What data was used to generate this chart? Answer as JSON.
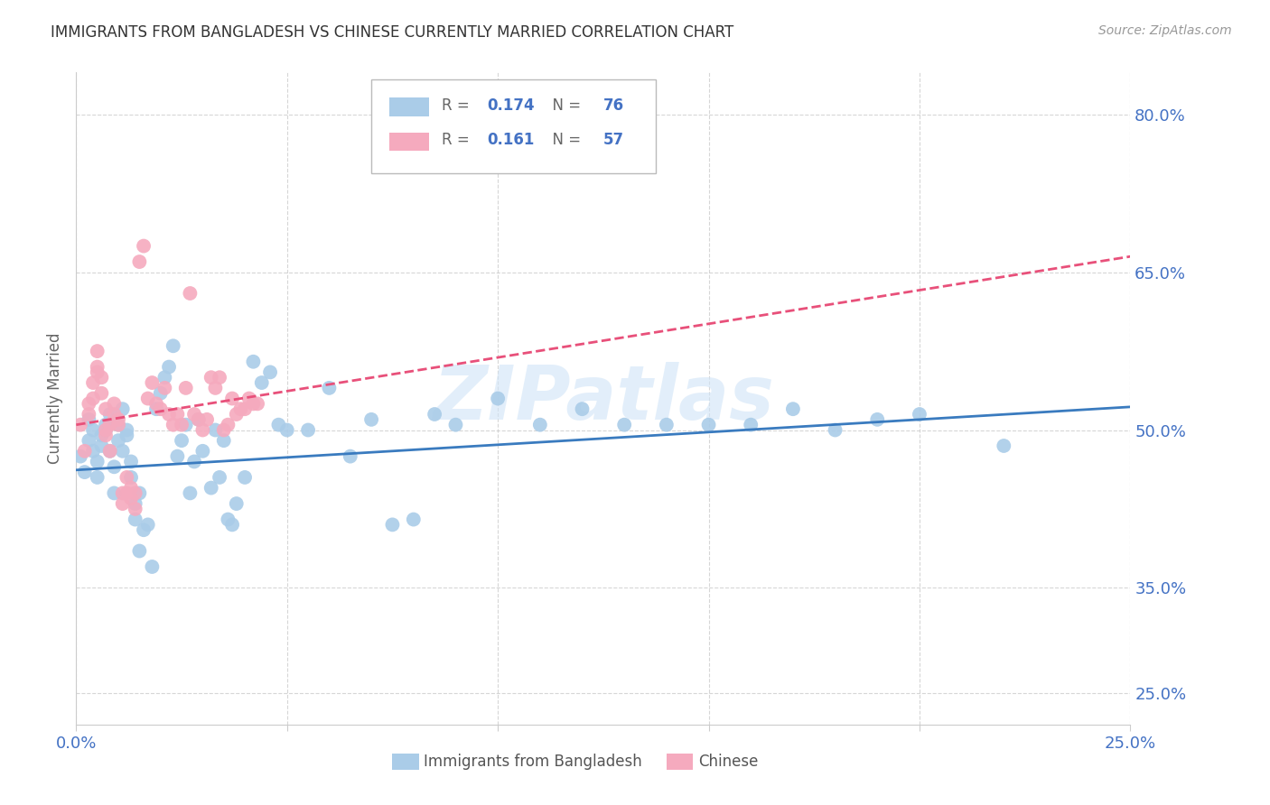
{
  "title": "IMMIGRANTS FROM BANGLADESH VS CHINESE CURRENTLY MARRIED CORRELATION CHART",
  "source": "Source: ZipAtlas.com",
  "ylabel": "Currently Married",
  "xlim": [
    0.0,
    0.25
  ],
  "ylim": [
    0.22,
    0.84
  ],
  "yticks": [
    0.25,
    0.35,
    0.5,
    0.65,
    0.8
  ],
  "ytick_labels": [
    "25.0%",
    "35.0%",
    "50.0%",
    "65.0%",
    "80.0%"
  ],
  "xtick_positions": [
    0.0,
    0.05,
    0.1,
    0.15,
    0.2,
    0.25
  ],
  "xtick_labels": [
    "0.0%",
    "",
    "",
    "",
    "",
    "25.0%"
  ],
  "bangladesh_scatter_color": "#aacce8",
  "chinese_scatter_color": "#f5aabe",
  "trend_bangladesh_color": "#3a7bbf",
  "trend_chinese_color": "#e8507a",
  "trend_bang_x0": 0.0,
  "trend_bang_y0": 0.462,
  "trend_bang_x1": 0.25,
  "trend_bang_y1": 0.522,
  "trend_chin_x0": 0.0,
  "trend_chin_y0": 0.505,
  "trend_chin_x1": 0.25,
  "trend_chin_y1": 0.665,
  "watermark": "ZIPatlas",
  "watermark_color": "#d0e4f7",
  "legend_R1": "0.174",
  "legend_N1": "76",
  "legend_R2": "0.161",
  "legend_N2": "57",
  "label1": "Immigrants from Bangladesh",
  "label2": "Chinese",
  "bangladesh_points": [
    [
      0.001,
      0.475
    ],
    [
      0.002,
      0.46
    ],
    [
      0.003,
      0.49
    ],
    [
      0.003,
      0.51
    ],
    [
      0.004,
      0.48
    ],
    [
      0.004,
      0.5
    ],
    [
      0.005,
      0.455
    ],
    [
      0.005,
      0.47
    ],
    [
      0.006,
      0.485
    ],
    [
      0.006,
      0.495
    ],
    [
      0.007,
      0.5
    ],
    [
      0.007,
      0.505
    ],
    [
      0.008,
      0.515
    ],
    [
      0.008,
      0.48
    ],
    [
      0.009,
      0.465
    ],
    [
      0.009,
      0.44
    ],
    [
      0.01,
      0.49
    ],
    [
      0.01,
      0.505
    ],
    [
      0.011,
      0.52
    ],
    [
      0.011,
      0.48
    ],
    [
      0.012,
      0.495
    ],
    [
      0.012,
      0.5
    ],
    [
      0.013,
      0.455
    ],
    [
      0.013,
      0.47
    ],
    [
      0.014,
      0.43
    ],
    [
      0.014,
      0.415
    ],
    [
      0.015,
      0.44
    ],
    [
      0.015,
      0.385
    ],
    [
      0.016,
      0.405
    ],
    [
      0.017,
      0.41
    ],
    [
      0.018,
      0.37
    ],
    [
      0.019,
      0.52
    ],
    [
      0.02,
      0.535
    ],
    [
      0.021,
      0.55
    ],
    [
      0.022,
      0.56
    ],
    [
      0.023,
      0.58
    ],
    [
      0.024,
      0.475
    ],
    [
      0.025,
      0.49
    ],
    [
      0.026,
      0.505
    ],
    [
      0.027,
      0.44
    ],
    [
      0.028,
      0.47
    ],
    [
      0.029,
      0.51
    ],
    [
      0.03,
      0.48
    ],
    [
      0.032,
      0.445
    ],
    [
      0.033,
      0.5
    ],
    [
      0.034,
      0.455
    ],
    [
      0.035,
      0.49
    ],
    [
      0.036,
      0.415
    ],
    [
      0.037,
      0.41
    ],
    [
      0.038,
      0.43
    ],
    [
      0.04,
      0.455
    ],
    [
      0.042,
      0.565
    ],
    [
      0.044,
      0.545
    ],
    [
      0.046,
      0.555
    ],
    [
      0.048,
      0.505
    ],
    [
      0.05,
      0.5
    ],
    [
      0.055,
      0.5
    ],
    [
      0.06,
      0.54
    ],
    [
      0.065,
      0.475
    ],
    [
      0.07,
      0.51
    ],
    [
      0.075,
      0.41
    ],
    [
      0.08,
      0.415
    ],
    [
      0.085,
      0.515
    ],
    [
      0.09,
      0.505
    ],
    [
      0.1,
      0.53
    ],
    [
      0.11,
      0.505
    ],
    [
      0.12,
      0.52
    ],
    [
      0.13,
      0.505
    ],
    [
      0.14,
      0.505
    ],
    [
      0.15,
      0.505
    ],
    [
      0.16,
      0.505
    ],
    [
      0.17,
      0.52
    ],
    [
      0.18,
      0.5
    ],
    [
      0.19,
      0.51
    ],
    [
      0.2,
      0.515
    ],
    [
      0.22,
      0.485
    ]
  ],
  "chinese_points": [
    [
      0.001,
      0.505
    ],
    [
      0.002,
      0.48
    ],
    [
      0.003,
      0.515
    ],
    [
      0.003,
      0.525
    ],
    [
      0.004,
      0.53
    ],
    [
      0.004,
      0.545
    ],
    [
      0.005,
      0.555
    ],
    [
      0.005,
      0.56
    ],
    [
      0.005,
      0.575
    ],
    [
      0.006,
      0.55
    ],
    [
      0.006,
      0.535
    ],
    [
      0.007,
      0.52
    ],
    [
      0.007,
      0.5
    ],
    [
      0.007,
      0.495
    ],
    [
      0.008,
      0.48
    ],
    [
      0.008,
      0.505
    ],
    [
      0.009,
      0.515
    ],
    [
      0.009,
      0.525
    ],
    [
      0.01,
      0.505
    ],
    [
      0.01,
      0.51
    ],
    [
      0.011,
      0.44
    ],
    [
      0.011,
      0.43
    ],
    [
      0.012,
      0.44
    ],
    [
      0.012,
      0.455
    ],
    [
      0.013,
      0.445
    ],
    [
      0.013,
      0.435
    ],
    [
      0.014,
      0.425
    ],
    [
      0.014,
      0.44
    ],
    [
      0.015,
      0.66
    ],
    [
      0.016,
      0.675
    ],
    [
      0.017,
      0.53
    ],
    [
      0.018,
      0.545
    ],
    [
      0.019,
      0.525
    ],
    [
      0.02,
      0.52
    ],
    [
      0.021,
      0.54
    ],
    [
      0.022,
      0.515
    ],
    [
      0.023,
      0.505
    ],
    [
      0.024,
      0.515
    ],
    [
      0.025,
      0.505
    ],
    [
      0.026,
      0.54
    ],
    [
      0.027,
      0.63
    ],
    [
      0.028,
      0.515
    ],
    [
      0.029,
      0.51
    ],
    [
      0.03,
      0.5
    ],
    [
      0.031,
      0.51
    ],
    [
      0.032,
      0.55
    ],
    [
      0.033,
      0.54
    ],
    [
      0.034,
      0.55
    ],
    [
      0.035,
      0.5
    ],
    [
      0.036,
      0.505
    ],
    [
      0.037,
      0.53
    ],
    [
      0.038,
      0.515
    ],
    [
      0.039,
      0.52
    ],
    [
      0.04,
      0.52
    ],
    [
      0.041,
      0.53
    ],
    [
      0.042,
      0.525
    ],
    [
      0.043,
      0.525
    ]
  ]
}
